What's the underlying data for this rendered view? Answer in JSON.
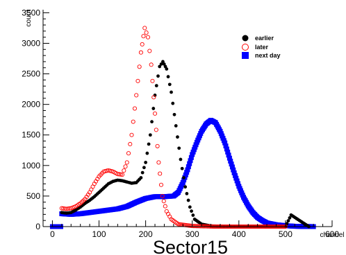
{
  "chart_data": {
    "type": "scatter",
    "title": "Sector15",
    "xlabel": "channel",
    "ylabel": "count",
    "xlim": [
      -20,
      600
    ],
    "ylim": [
      0,
      3550
    ],
    "x_ticks": [
      0,
      100,
      200,
      300,
      400,
      500,
      600
    ],
    "y_ticks": [
      0,
      500,
      1000,
      1500,
      2000,
      2500,
      3000,
      3500
    ],
    "legend_position": "top-right",
    "grid": false,
    "series": [
      {
        "name": "earlier",
        "marker": "filled-circle",
        "color": "#000000",
        "points": [
          [
            20,
            230
          ],
          [
            30,
            220
          ],
          [
            40,
            230
          ],
          [
            50,
            270
          ],
          [
            60,
            320
          ],
          [
            70,
            380
          ],
          [
            80,
            430
          ],
          [
            90,
            490
          ],
          [
            100,
            560
          ],
          [
            110,
            630
          ],
          [
            120,
            700
          ],
          [
            130,
            740
          ],
          [
            140,
            760
          ],
          [
            150,
            750
          ],
          [
            160,
            730
          ],
          [
            170,
            710
          ],
          [
            180,
            720
          ],
          [
            190,
            800
          ],
          [
            200,
            1050
          ],
          [
            210,
            1500
          ],
          [
            220,
            2150
          ],
          [
            230,
            2620
          ],
          [
            237,
            2700
          ],
          [
            245,
            2580
          ],
          [
            255,
            2200
          ],
          [
            265,
            1650
          ],
          [
            275,
            1100
          ],
          [
            285,
            650
          ],
          [
            295,
            320
          ],
          [
            305,
            120
          ],
          [
            320,
            40
          ],
          [
            340,
            10
          ],
          [
            380,
            0
          ],
          [
            450,
            0
          ],
          [
            500,
            0
          ],
          [
            512,
            190
          ],
          [
            550,
            0
          ]
        ]
      },
      {
        "name": "later",
        "marker": "open-circle",
        "color": "#ff0000",
        "points": [
          [
            20,
            300
          ],
          [
            30,
            290
          ],
          [
            40,
            300
          ],
          [
            50,
            330
          ],
          [
            60,
            380
          ],
          [
            70,
            450
          ],
          [
            80,
            560
          ],
          [
            90,
            700
          ],
          [
            100,
            820
          ],
          [
            110,
            900
          ],
          [
            120,
            920
          ],
          [
            130,
            900
          ],
          [
            140,
            860
          ],
          [
            150,
            850
          ],
          [
            160,
            1050
          ],
          [
            170,
            1500
          ],
          [
            180,
            2150
          ],
          [
            190,
            2850
          ],
          [
            198,
            3250
          ],
          [
            205,
            3100
          ],
          [
            212,
            2650
          ],
          [
            220,
            1850
          ],
          [
            228,
            1050
          ],
          [
            236,
            500
          ],
          [
            245,
            250
          ],
          [
            255,
            120
          ],
          [
            270,
            40
          ],
          [
            300,
            10
          ],
          [
            350,
            0
          ],
          [
            420,
            0
          ],
          [
            500,
            0
          ]
        ]
      },
      {
        "name": "next day",
        "marker": "filled-square",
        "color": "#0000ff",
        "points": [
          [
            20,
            210
          ],
          [
            40,
            200
          ],
          [
            60,
            210
          ],
          [
            80,
            230
          ],
          [
            100,
            250
          ],
          [
            120,
            270
          ],
          [
            140,
            290
          ],
          [
            160,
            330
          ],
          [
            180,
            400
          ],
          [
            200,
            460
          ],
          [
            220,
            490
          ],
          [
            240,
            490
          ],
          [
            260,
            500
          ],
          [
            270,
            560
          ],
          [
            280,
            720
          ],
          [
            290,
            930
          ],
          [
            300,
            1180
          ],
          [
            310,
            1380
          ],
          [
            320,
            1560
          ],
          [
            330,
            1680
          ],
          [
            340,
            1740
          ],
          [
            350,
            1700
          ],
          [
            360,
            1560
          ],
          [
            370,
            1370
          ],
          [
            380,
            1120
          ],
          [
            390,
            880
          ],
          [
            400,
            660
          ],
          [
            410,
            480
          ],
          [
            420,
            340
          ],
          [
            430,
            230
          ],
          [
            440,
            150
          ],
          [
            450,
            100
          ],
          [
            460,
            60
          ],
          [
            480,
            30
          ],
          [
            500,
            15
          ],
          [
            520,
            5
          ],
          [
            560,
            0
          ]
        ]
      }
    ]
  }
}
